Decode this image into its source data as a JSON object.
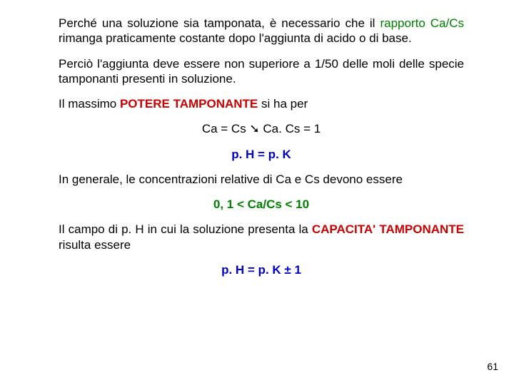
{
  "colors": {
    "text": "#000000",
    "green": "#008000",
    "red": "#cc0000",
    "blue": "#0000cc",
    "background": "#ffffff"
  },
  "p1": {
    "t1": "Perché una soluzione sia tamponata, è necessario che il ",
    "t2": "rapporto Ca/Cs",
    "t3": " rimanga praticamente costante dopo l'aggiunta di acido o di base."
  },
  "p2": "Perciò l'aggiunta deve essere non superiore a 1/50 delle moli delle specie tamponanti presenti in soluzione.",
  "p3": {
    "t1": "Il massimo ",
    "t2": "POTERE TAMPONANTE",
    "t3": " si ha per"
  },
  "eq1": {
    "lhs": "Ca = Cs ",
    "arrow": "➘",
    "rhs": " Ca. Cs = 1"
  },
  "eq2": "p. H = p. K",
  "p4": "In generale, le concentrazioni relative di Ca e Cs devono essere",
  "eq3": "0, 1 < Ca/Cs < 10",
  "p5": {
    "t1": "Il campo di p. H in cui la soluzione presenta la ",
    "t2": "CAPACITA' TAMPONANTE",
    "t3": " risulta essere"
  },
  "eq4": "p. H = p. K ± 1",
  "page_number": "61"
}
